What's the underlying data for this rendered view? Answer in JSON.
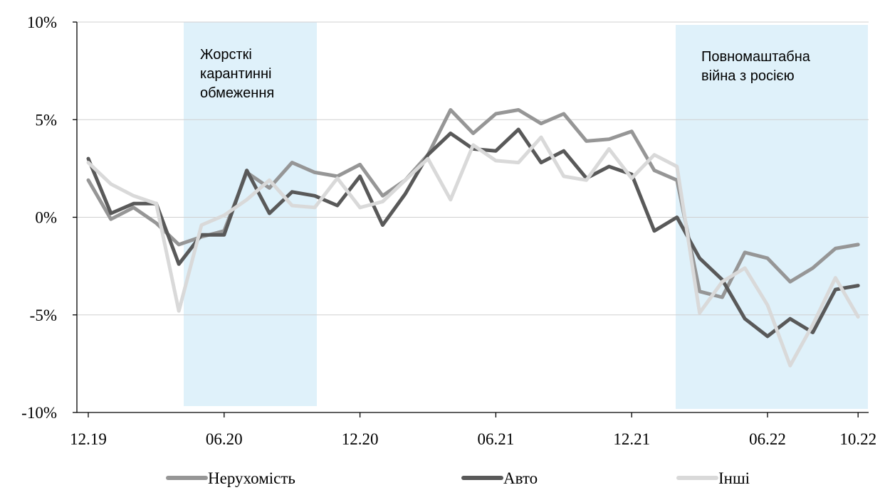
{
  "chart_data": {
    "type": "line",
    "x": [
      "12.19",
      "01.20",
      "02.20",
      "03.20",
      "04.20",
      "05.20",
      "06.20",
      "07.20",
      "08.20",
      "09.20",
      "10.20",
      "11.20",
      "12.20",
      "01.21",
      "02.21",
      "03.21",
      "04.21",
      "05.21",
      "06.21",
      "07.21",
      "08.21",
      "09.21",
      "10.21",
      "11.21",
      "12.21",
      "01.22",
      "02.22",
      "03.22",
      "04.22",
      "05.22",
      "06.22",
      "07.22",
      "08.22",
      "09.22",
      "10.22"
    ],
    "xtick_labels": [
      "12.19",
      "06.20",
      "12.20",
      "06.21",
      "12.21",
      "06.22",
      "10.22"
    ],
    "xtick_indices": [
      0,
      6,
      12,
      18,
      24,
      30,
      34
    ],
    "yticks": [
      10,
      5,
      0,
      -5,
      -10
    ],
    "ytick_labels": [
      "10%",
      "5%",
      "0%",
      "-5%",
      "-10%"
    ],
    "ylim": [
      -10,
      10
    ],
    "grid": true,
    "legend_position": "bottom",
    "series": [
      {
        "name": "Нерухомість",
        "color": "#969696",
        "values": [
          1.9,
          -0.1,
          0.5,
          -0.3,
          -1.4,
          -1.0,
          -0.7,
          2.3,
          1.5,
          2.8,
          2.3,
          2.1,
          2.7,
          1.1,
          1.9,
          3.2,
          5.5,
          4.3,
          5.3,
          5.5,
          4.8,
          5.3,
          3.9,
          4.0,
          4.4,
          2.4,
          1.9,
          -3.8,
          -4.1,
          -1.8,
          -2.1,
          -3.3,
          -2.6,
          -1.6,
          -1.4
        ]
      },
      {
        "name": "Авто",
        "color": "#595959",
        "values": [
          3.0,
          0.2,
          0.7,
          0.7,
          -2.4,
          -0.9,
          -0.9,
          2.4,
          0.2,
          1.3,
          1.1,
          0.6,
          2.1,
          -0.4,
          1.2,
          3.2,
          4.3,
          3.5,
          3.4,
          4.5,
          2.8,
          3.4,
          2.0,
          2.6,
          2.2,
          -0.7,
          0.0,
          -2.1,
          -3.2,
          -5.2,
          -6.1,
          -5.2,
          -5.9,
          -3.7,
          -3.5
        ]
      },
      {
        "name": "Інші",
        "color": "#d9d9d9",
        "values": [
          2.8,
          1.7,
          1.1,
          0.7,
          -4.8,
          -0.4,
          0.1,
          0.9,
          1.9,
          0.6,
          0.5,
          2.0,
          0.5,
          0.8,
          1.9,
          3.0,
          0.9,
          3.7,
          2.9,
          2.8,
          4.1,
          2.1,
          1.9,
          3.5,
          2.0,
          3.2,
          2.6,
          -4.9,
          -3.3,
          -2.6,
          -4.5,
          -7.6,
          -5.5,
          -3.1,
          -5.1
        ]
      }
    ],
    "shaded_regions": [
      {
        "start": "04.20",
        "end": "09.20",
        "label_lines": [
          "Жорсткі",
          "карантинні",
          "обмеження"
        ],
        "color": "#dff1fa"
      },
      {
        "start": "01.22",
        "end": "10.22",
        "label_lines": [
          "Повномаштабна",
          "війна з росією"
        ],
        "color": "#dff1fa"
      }
    ]
  }
}
